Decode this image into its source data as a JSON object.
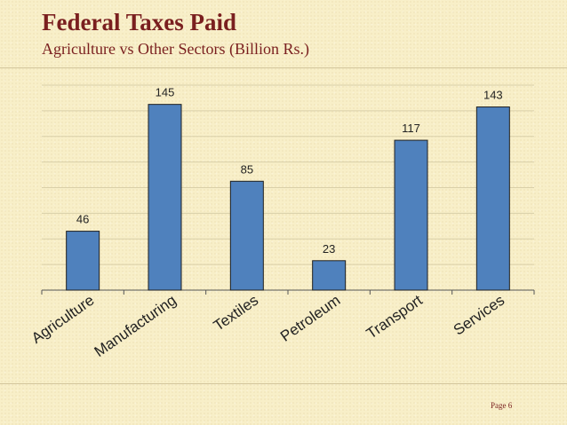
{
  "slide": {
    "title": "Federal Taxes Paid",
    "subtitle": "Agriculture vs Other Sectors (Billion Rs.)",
    "footer": "Page 6"
  },
  "colors": {
    "bar": "#4f81bd",
    "title": "#7a1f1f",
    "background": "#f8efc8"
  },
  "chart_data": {
    "type": "bar",
    "title": "Federal Taxes Paid",
    "subtitle": "Agriculture vs Other Sectors (Billion Rs.)",
    "categories": [
      "Agriculture",
      "Manufacturing",
      "Textiles",
      "Petroleum",
      "Transport",
      "Services"
    ],
    "values": [
      46,
      145,
      85,
      23,
      117,
      143
    ],
    "data_labels": [
      "46",
      "145",
      "85",
      "23",
      "117",
      "143"
    ],
    "xlabel": "",
    "ylabel": "",
    "ylim": [
      0,
      160
    ],
    "grid": true,
    "legend": "none"
  }
}
